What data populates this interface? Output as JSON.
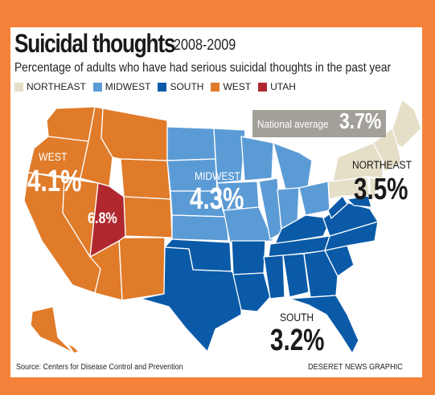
{
  "title": "Suicidal thoughts",
  "years": "2008-2009",
  "subtitle": "Percentage of adults who have had serious suicidal thoughts in the past year",
  "legend": [
    {
      "label": "NORTHEAST",
      "color": "#e6dfc8"
    },
    {
      "label": "MIDWEST",
      "color": "#5b9bd5"
    },
    {
      "label": "SOUTH",
      "color": "#0a5aa8"
    },
    {
      "label": "WEST",
      "color": "#e07b2a"
    },
    {
      "label": "UTAH",
      "color": "#b0282e"
    }
  ],
  "national_average": {
    "label": "National average",
    "value": "3.7%"
  },
  "regions": {
    "west": {
      "name": "WEST",
      "value": "4.1%",
      "color": "#e07b2a"
    },
    "midwest": {
      "name": "MIDWEST",
      "value": "4.3%",
      "color": "#5b9bd5"
    },
    "northeast": {
      "name": "NORTHEAST",
      "value": "3.5%",
      "color": "#e6dfc8"
    },
    "south": {
      "name": "SOUTH",
      "value": "3.2%",
      "color": "#0a5aa8"
    },
    "utah": {
      "value": "6.8%",
      "color": "#b0282e"
    }
  },
  "source": "Source: Centers for Disease Control and Prevention",
  "credit": "DESERET NEWS GRAPHIC"
}
